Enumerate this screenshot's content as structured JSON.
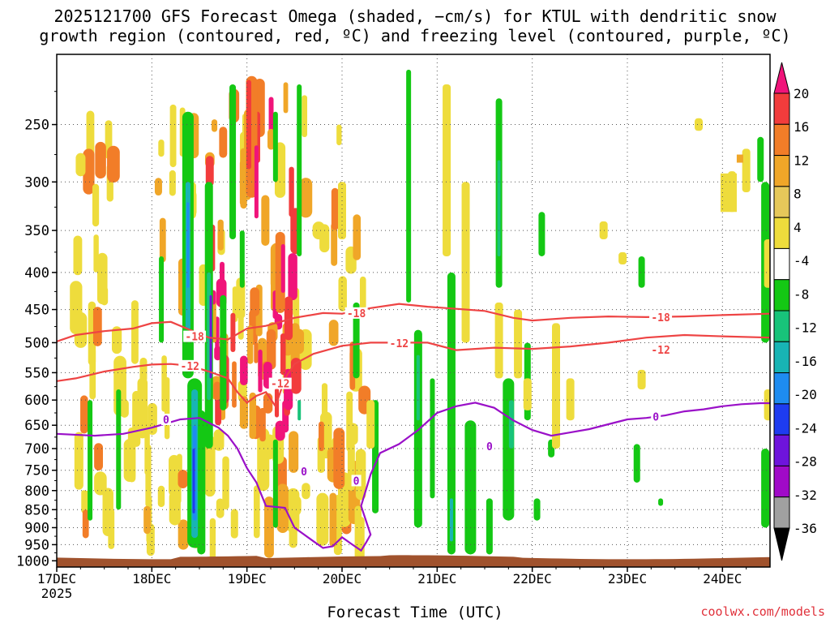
{
  "title_line1": "2025121700 GFS Forecast Omega (shaded, −cm/s) for KTUL with dendritic snow",
  "title_line2": "growth region (contoured, red, ºC) and freezing level (contoured, purple, ºC)",
  "credit": "coolwx.com/models",
  "chart_data": {
    "type": "heatmap",
    "title": "2025121700 GFS Forecast Omega (shaded, −cm/s) for KTUL with dendritic snow growth region (contoured, red, ºC) and freezing level (contoured, purple, ºC)",
    "xlabel": "Forecast Time (UTC)",
    "ylabel": "",
    "x_ticks": [
      "17DEC",
      "18DEC",
      "19DEC",
      "20DEC",
      "21DEC",
      "22DEC",
      "23DEC",
      "24DEC"
    ],
    "x_tick_year": "2025",
    "x_range_days": [
      0,
      7.5
    ],
    "y_ticks": [
      250,
      300,
      350,
      400,
      450,
      500,
      550,
      600,
      650,
      700,
      750,
      800,
      850,
      900,
      950,
      1000
    ],
    "y_range_hpa": [
      200,
      1020
    ],
    "y_inverted": true,
    "colorbar": {
      "labels": [
        "20",
        "16",
        "12",
        "8",
        "4",
        "-4",
        "-8",
        "-12",
        "-16",
        "-20",
        "-24",
        "-28",
        "-32",
        "-36"
      ],
      "colors": [
        "#f0147a",
        "#f23c3c",
        "#f27d28",
        "#f0a628",
        "#e6c85a",
        "#eedc3c",
        "#ffffff",
        "#14c814",
        "#18c37a",
        "#18b4b4",
        "#1e8cf0",
        "#1e3cf0",
        "#6e14dc",
        "#a00ac8",
        "#a0a0a0",
        "#000000"
      ]
    },
    "series": [
      {
        "name": "-18",
        "color": "#ee4444",
        "points": [
          [
            0.0,
            498
          ],
          [
            0.2,
            488
          ],
          [
            0.5,
            482
          ],
          [
            0.8,
            478
          ],
          [
            1.0,
            470
          ],
          [
            1.2,
            468
          ],
          [
            1.4,
            480
          ],
          [
            1.6,
            492
          ],
          [
            1.8,
            495
          ],
          [
            2.0,
            478
          ],
          [
            2.2,
            474
          ],
          [
            2.5,
            462
          ],
          [
            2.8,
            455
          ],
          [
            3.0,
            456
          ],
          [
            3.3,
            448
          ],
          [
            3.6,
            442
          ],
          [
            3.9,
            446
          ],
          [
            4.1,
            448
          ],
          [
            4.5,
            452
          ],
          [
            4.8,
            462
          ],
          [
            5.0,
            466
          ],
          [
            5.4,
            462
          ],
          [
            5.8,
            460
          ],
          [
            6.2,
            461
          ],
          [
            6.6,
            460
          ],
          [
            7.0,
            458
          ],
          [
            7.5,
            456
          ]
        ]
      },
      {
        "name": "-12",
        "color": "#ee4444",
        "points": [
          [
            0.0,
            565
          ],
          [
            0.2,
            560
          ],
          [
            0.5,
            548
          ],
          [
            0.8,
            540
          ],
          [
            1.0,
            536
          ],
          [
            1.2,
            535
          ],
          [
            1.4,
            538
          ],
          [
            1.6,
            548
          ],
          [
            1.8,
            560
          ],
          [
            1.9,
            585
          ],
          [
            2.0,
            605
          ],
          [
            2.1,
            592
          ],
          [
            2.2,
            585
          ],
          [
            2.3,
            612
          ],
          [
            2.4,
            560
          ],
          [
            2.5,
            535
          ],
          [
            2.7,
            518
          ],
          [
            3.0,
            505
          ],
          [
            3.3,
            500
          ],
          [
            3.6,
            500
          ],
          [
            3.9,
            500
          ],
          [
            4.2,
            512
          ],
          [
            4.6,
            508
          ],
          [
            5.0,
            510
          ],
          [
            5.4,
            506
          ],
          [
            5.8,
            500
          ],
          [
            6.2,
            492
          ],
          [
            6.6,
            488
          ],
          [
            7.0,
            490
          ],
          [
            7.5,
            492
          ]
        ]
      },
      {
        "name": "0",
        "color": "#9a10c8",
        "points": [
          [
            0.0,
            668
          ],
          [
            0.4,
            672
          ],
          [
            0.7,
            668
          ],
          [
            1.0,
            655
          ],
          [
            1.3,
            638
          ],
          [
            1.5,
            635
          ],
          [
            1.7,
            655
          ],
          [
            1.8,
            672
          ],
          [
            1.9,
            700
          ],
          [
            2.0,
            745
          ],
          [
            2.1,
            780
          ],
          [
            2.2,
            840
          ],
          [
            2.4,
            845
          ],
          [
            2.5,
            900
          ],
          [
            2.7,
            940
          ],
          [
            2.8,
            960
          ],
          [
            2.9,
            955
          ],
          [
            3.0,
            928
          ],
          [
            3.1,
            948
          ],
          [
            3.2,
            968
          ],
          [
            3.25,
            945
          ],
          [
            3.3,
            920
          ],
          [
            3.2,
            840
          ],
          [
            3.3,
            760
          ],
          [
            3.4,
            710
          ],
          [
            3.6,
            690
          ],
          [
            3.8,
            660
          ],
          [
            4.0,
            625
          ],
          [
            4.2,
            612
          ],
          [
            4.4,
            605
          ],
          [
            4.6,
            615
          ],
          [
            4.8,
            640
          ],
          [
            5.0,
            660
          ],
          [
            5.2,
            672
          ],
          [
            5.4,
            665
          ],
          [
            5.6,
            658
          ],
          [
            5.8,
            648
          ],
          [
            6.0,
            638
          ],
          [
            6.2,
            635
          ],
          [
            6.4,
            630
          ],
          [
            6.6,
            622
          ],
          [
            6.8,
            618
          ],
          [
            7.0,
            612
          ],
          [
            7.2,
            608
          ],
          [
            7.4,
            606
          ],
          [
            7.5,
            606
          ]
        ]
      }
    ],
    "contour_labels": [
      {
        "text": "-18",
        "x": 3.15,
        "p": 455
      },
      {
        "text": "-18",
        "x": 6.35,
        "p": 461
      },
      {
        "text": "-18",
        "x": 1.45,
        "p": 490
      },
      {
        "text": "-12",
        "x": 3.6,
        "p": 501
      },
      {
        "text": "-12",
        "x": 6.35,
        "p": 511
      },
      {
        "text": "-12",
        "x": 2.35,
        "p": 569
      },
      {
        "text": "-12",
        "x": 1.4,
        "p": 538
      },
      {
        "text": "0",
        "x": 1.15,
        "p": 638
      },
      {
        "text": "0",
        "x": 3.15,
        "p": 775
      },
      {
        "text": "0",
        "x": 4.55,
        "p": 695
      },
      {
        "text": "0",
        "x": 6.3,
        "p": 632
      },
      {
        "text": "0",
        "x": 2.6,
        "p": 752
      }
    ],
    "ground_pressure_hpa": 990
  }
}
